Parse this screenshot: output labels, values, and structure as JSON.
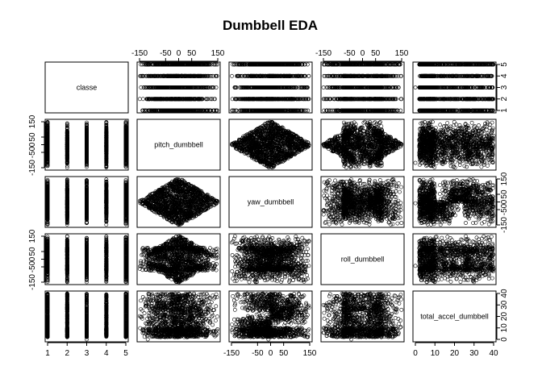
{
  "chart_data": {
    "type": "scatter",
    "title": "Dumbbell EDA",
    "variables": [
      "classe",
      "pitch_dumbbell",
      "yaw_dumbbell",
      "roll_dumbbell",
      "total_accel_dumbbell"
    ],
    "ranges": {
      "classe": [
        1,
        5
      ],
      "pitch_dumbbell": [
        -150,
        150
      ],
      "yaw_dumbbell": [
        -150,
        150
      ],
      "roll_dumbbell": [
        -150,
        150
      ],
      "total_accel_dumbbell": [
        0,
        40
      ]
    },
    "ticks": {
      "classe": [
        "1",
        "2",
        "3",
        "4",
        "5"
      ],
      "pitch_dumbbell": [
        "-150",
        "-50",
        "0",
        "50",
        "150"
      ],
      "yaw_dumbbell": [
        "-150",
        "-50",
        "0",
        "50",
        "150"
      ],
      "roll_dumbbell": [
        "-150",
        "-50",
        "0",
        "50",
        "150"
      ],
      "total_accel_dumbbell": [
        "0",
        "10",
        "20",
        "30",
        "40"
      ]
    },
    "diagonal_labels": [
      "classe",
      "pitch_dumbbell",
      "yaw_dumbbell",
      "roll_dumbbell",
      "total_accel_dumbbell"
    ],
    "point_style": "open-circle",
    "point_color": "#000000",
    "grid": false,
    "legend": "none"
  }
}
